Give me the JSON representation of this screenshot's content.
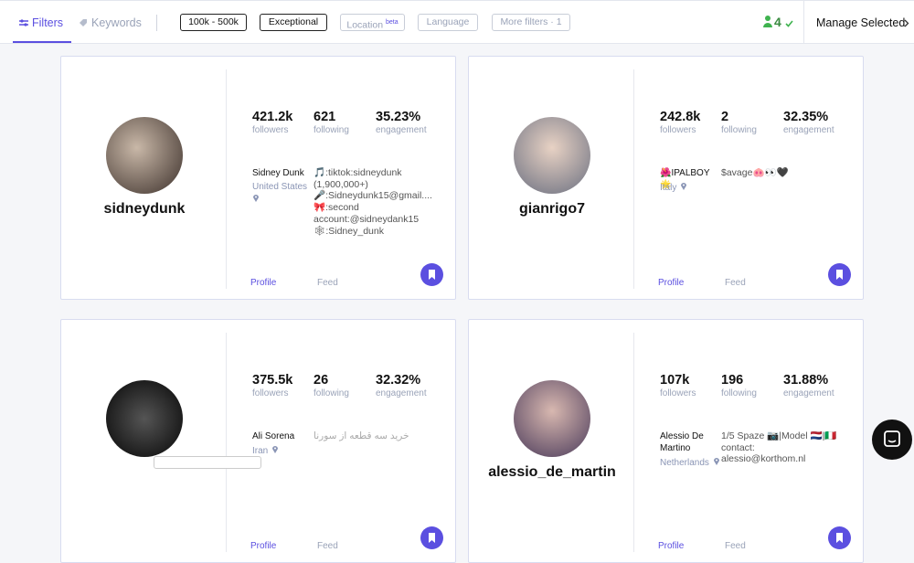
{
  "toolbar": {
    "tabs": [
      "Filters",
      "Keywords"
    ],
    "filters": [
      {
        "label": "100k - 500k"
      },
      {
        "label": "Exceptional"
      },
      {
        "label": "Location",
        "badge": "beta"
      },
      {
        "label": "Language"
      },
      {
        "label": "More filters · 1"
      }
    ],
    "selected_count": "4",
    "manage": "Manage Selected"
  },
  "cards": [
    {
      "username": "sidneydunk",
      "stats": [
        {
          "value": "421.2k",
          "label": "followers"
        },
        {
          "value": "621",
          "label": "following"
        },
        {
          "value": "35.23%",
          "label": "engagement"
        }
      ],
      "name": "Sidney Dunk",
      "location": "United States",
      "bio": [
        "🎵:tiktok:sidneydunk",
        "(1,900,000+)",
        "🎤:Sidneydunk15@gmail....",
        "🎀:second",
        "account:@sidneydank15",
        "🕸:Sidney_dunk"
      ],
      "links": [
        "Profile",
        "Feed"
      ]
    },
    {
      "username": "gianrigo7",
      "stats": [
        {
          "value": "242.8k",
          "label": "followers"
        },
        {
          "value": "2",
          "label": "following"
        },
        {
          "value": "32.35%",
          "label": "engagement"
        }
      ],
      "name": "🌺IPALBOY🌟",
      "location": "Italy",
      "bio": [
        "$avage🐽👀🖤"
      ],
      "links": [
        "Profile",
        "Feed"
      ]
    },
    {
      "username": "",
      "stats": [
        {
          "value": "375.5k",
          "label": "followers"
        },
        {
          "value": "26",
          "label": "following"
        },
        {
          "value": "32.32%",
          "label": "engagement"
        }
      ],
      "name": "Ali Sorena",
      "location": "Iran",
      "bio": [
        "خرید سه قطعه از سورنا"
      ],
      "links": [
        "Profile",
        "Feed"
      ]
    },
    {
      "username": "alessio_de_martin",
      "stats": [
        {
          "value": "107k",
          "label": "followers"
        },
        {
          "value": "196",
          "label": "following"
        },
        {
          "value": "31.88%",
          "label": "engagement"
        }
      ],
      "name": "Alessio De Martino",
      "location": "Netherlands",
      "bio": [
        "1/5 Spaze 📷|Model 🇳🇱|🇮🇹",
        "contact:",
        "alessio@korthom.nl"
      ],
      "links": [
        "Profile",
        "Feed"
      ]
    }
  ]
}
